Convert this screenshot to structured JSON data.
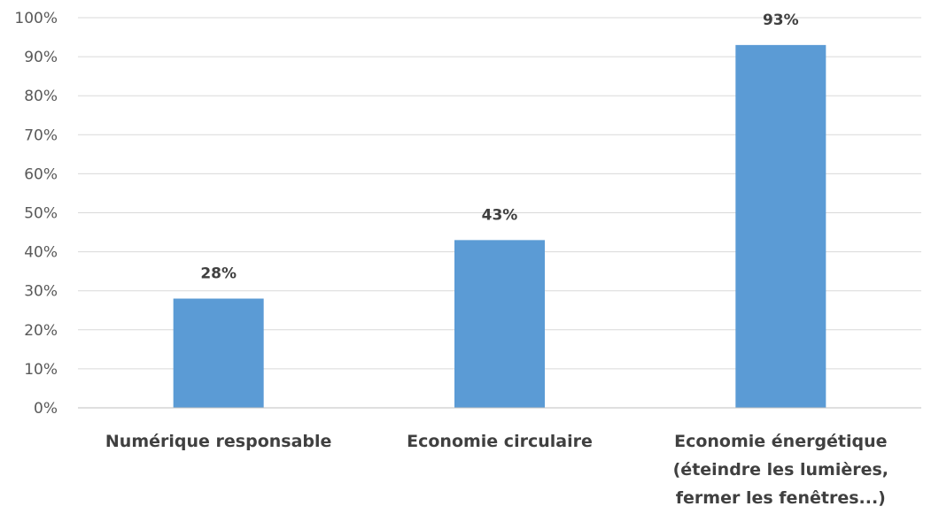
{
  "chart_data": {
    "type": "bar",
    "categories": [
      [
        "Numérique responsable"
      ],
      [
        "Economie circulaire"
      ],
      [
        "Economie énergétique",
        "(éteindre les lumières,",
        "fermer les fenêtres...)"
      ]
    ],
    "values": [
      28,
      43,
      93
    ],
    "data_labels": [
      "28%",
      "43%",
      "93%"
    ],
    "y_ticks": [
      "0%",
      "10%",
      "20%",
      "30%",
      "40%",
      "50%",
      "60%",
      "70%",
      "80%",
      "90%",
      "100%"
    ],
    "ylim": [
      0,
      100
    ],
    "grid": true,
    "bar_color": "#5b9bd5"
  }
}
